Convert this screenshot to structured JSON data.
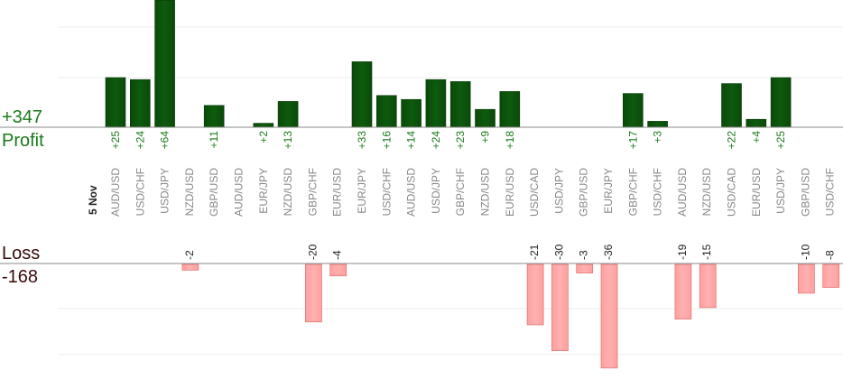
{
  "summary": {
    "profit_total": "+347",
    "profit_label": "Profit",
    "loss_label": "Loss",
    "loss_total": "-168"
  },
  "colors": {
    "profit_bar": "#0e5a0e",
    "profit_text": "#1a7a1a",
    "loss_bar": "#ffb0b0",
    "loss_text": "#3a0a0a"
  },
  "chart_data": {
    "type": "bar",
    "date_label": "5 Nov",
    "categories": [
      "AUD/USD",
      "USD/CHF",
      "USD/JPY",
      "NZD/USD",
      "GBP/USD",
      "AUD/USD",
      "EUR/JPY",
      "NZD/USD",
      "GBP/CHF",
      "EUR/USD",
      "EUR/JPY",
      "USD/CHF",
      "AUD/USD",
      "USD/JPY",
      "GBP/CHF",
      "NZD/USD",
      "EUR/USD",
      "USD/CAD",
      "USD/JPY",
      "GBP/USD",
      "EUR/JPY",
      "GBP/CHF",
      "USD/CHF",
      "AUD/USD",
      "NZD/USD",
      "USD/CAD",
      "EUR/USD",
      "USD/JPY",
      "GBP/USD",
      "USD/CHF"
    ],
    "profit_values": [
      25,
      24,
      64,
      null,
      11,
      null,
      2,
      13,
      null,
      null,
      33,
      16,
      14,
      24,
      23,
      9,
      18,
      null,
      null,
      null,
      null,
      17,
      3,
      null,
      null,
      22,
      4,
      25,
      null,
      null
    ],
    "profit_labels": [
      "+25",
      "+24",
      "+64",
      "",
      "+11",
      "",
      "+2",
      "+13",
      "",
      "",
      "+33",
      "+16",
      "+14",
      "+24",
      "+23",
      "+9",
      "+18",
      "",
      "",
      "",
      "",
      "+17",
      "+3",
      "",
      "",
      "+22",
      "+4",
      "+25",
      "",
      ""
    ],
    "loss_values": [
      null,
      null,
      null,
      -2,
      null,
      null,
      null,
      null,
      -20,
      -4,
      null,
      null,
      null,
      null,
      null,
      null,
      null,
      -21,
      -30,
      -3,
      -36,
      null,
      null,
      -19,
      -15,
      null,
      null,
      null,
      -10,
      -8
    ],
    "loss_labels": [
      "",
      "",
      "",
      "-2",
      "",
      "",
      "",
      "",
      "-20",
      "-4",
      "",
      "",
      "",
      "",
      "",
      "",
      "",
      "-21",
      "-30",
      "-3",
      "-36",
      "",
      "",
      "-19",
      "-15",
      "",
      "",
      "",
      "-10",
      "-8"
    ],
    "grid": true
  }
}
